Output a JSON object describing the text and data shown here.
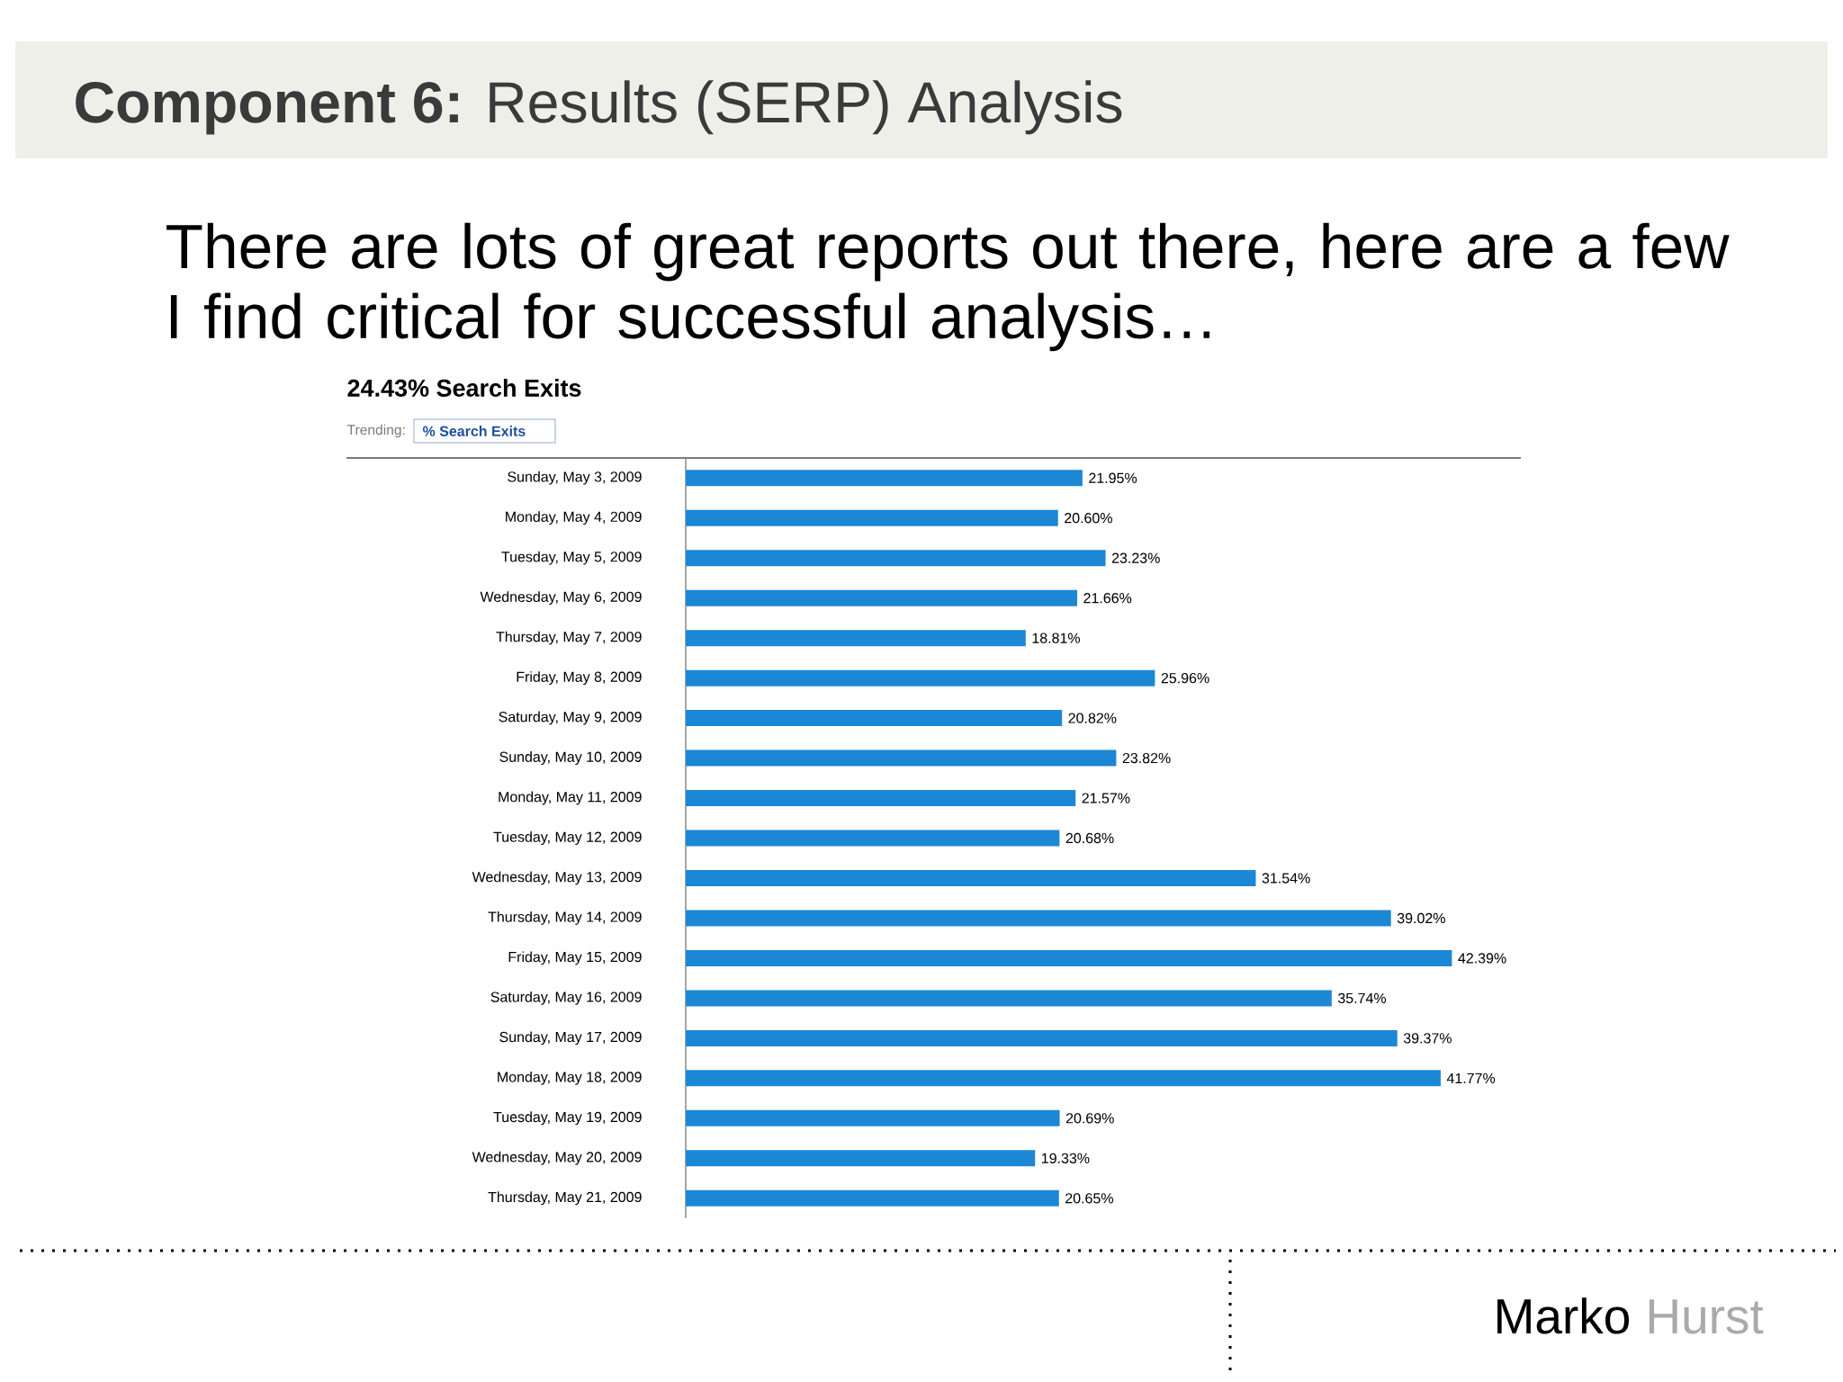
{
  "chart_data": {
    "type": "bar",
    "orientation": "horizontal",
    "title": "**Component 6:** Results (SERP) Analysis",
    "subtitle": "There are lots of great reports out there, here are a few I find critical for successful analysis…",
    "categories": [
      "Sunday, May 3, 2009",
      "Monday, May 4, 2009",
      "Tuesday, May 5, 2009",
      "Wednesday, May 6, 2009",
      "Thursday, May 7, 2009",
      "Friday, May 8, 2009",
      "Saturday, May 9, 2009",
      "Sunday, May 10, 2009",
      "Monday, May 11, 2009",
      "Tuesday, May 12, 2009",
      "Wednesday, May 13, 2009",
      "Thursday, May 14, 2009",
      "Friday, May 15, 2009",
      "Saturday, May 16, 2009",
      "Sunday, May 17, 2009",
      "Monday, May 18, 2009",
      "Tuesday, May 19, 2009",
      "Wednesday, May 20, 2009",
      "Thursday, May 21, 2009"
    ],
    "values": [
      21.95,
      20.6,
      23.23,
      21.66,
      18.81,
      25.96,
      20.82,
      23.82,
      21.57,
      20.68,
      31.54,
      39.02,
      42.39,
      35.74,
      39.37,
      41.77,
      20.69,
      19.33,
      20.65
    ],
    "value_labels": [
      "21.95%",
      "20.60%",
      "23.23%",
      "21.66%",
      "18.81%",
      "25.96%",
      "20.82%",
      "23.82%",
      "21.57%",
      "20.68%",
      "31.54%",
      "39.02%",
      "42.39%",
      "35.74%",
      "39.37%",
      "41.77%",
      "20.69%",
      "19.33%",
      "20.65%"
    ],
    "color": "#1c87d5",
    "tick_labels": "y",
    "annotations": [
      "24.43% Search Exits",
      "Trending:",
      "% Search Exits",
      "Marko",
      "Hurst"
    ]
  }
}
